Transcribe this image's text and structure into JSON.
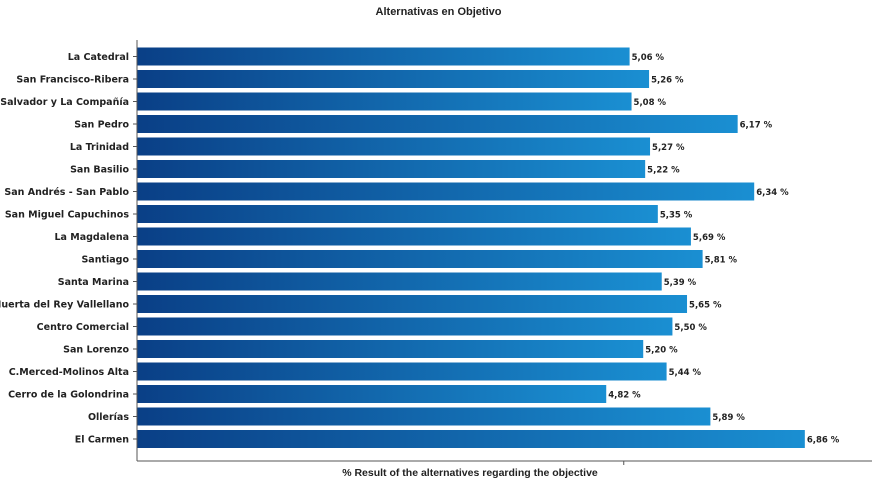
{
  "chart_data": {
    "type": "bar",
    "orientation": "horizontal",
    "title": "Alternativas en Objetivo",
    "xlabel": "% Result of the alternatives regarding the objective",
    "ylabel": "",
    "categories": [
      "La Catedral",
      "San Francisco-Ribera",
      "El Salvador y La Compañía",
      "San Pedro",
      "La Trinidad",
      "San Basilio",
      "San Andrés - San Pablo",
      "San Miguel Capuchinos",
      "La Magdalena",
      "Santiago",
      "Santa Marina",
      "Huerta del Rey Vallellano",
      "Centro Comercial",
      "San Lorenzo",
      "C.Merced-Molinos Alta",
      "Cerro de la Golondrina",
      "Ollerías",
      "El Carmen"
    ],
    "values": [
      5.06,
      5.26,
      5.08,
      6.17,
      5.27,
      5.22,
      6.34,
      5.35,
      5.69,
      5.81,
      5.39,
      5.65,
      5.5,
      5.2,
      5.44,
      4.82,
      5.89,
      6.86
    ],
    "value_labels": [
      "5,06 %",
      "5,26 %",
      "5,08 %",
      "6,17 %",
      "5,27 %",
      "5,22 %",
      "6,34 %",
      "5,35 %",
      "5,69 %",
      "5,81 %",
      "5,39 %",
      "5,65 %",
      "5,50 %",
      "5,20 %",
      "5,44 %",
      "4,82 %",
      "5,89 %",
      "6,86 %"
    ],
    "xlim": [
      0,
      7.55
    ],
    "grid": false,
    "legend": "none",
    "colors": {
      "bar_dark": "#0a3f86",
      "bar_light": "#1a8fd2",
      "axis": "#555555"
    }
  }
}
